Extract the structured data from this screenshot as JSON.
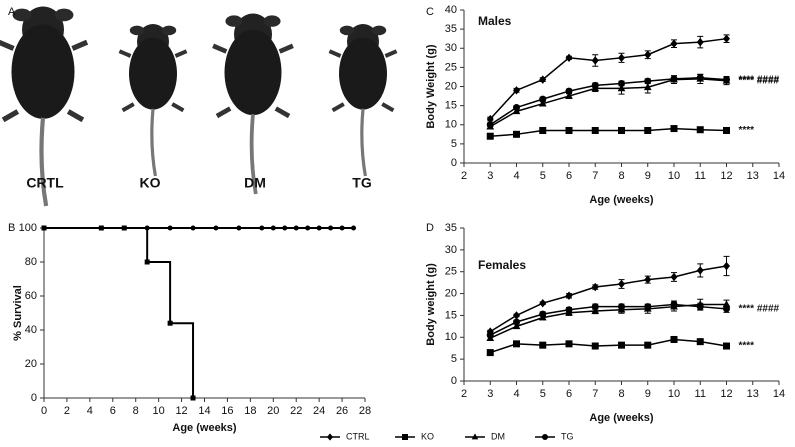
{
  "photo_panel": {
    "label": "A",
    "mice": [
      "CRTL",
      "KO",
      "DM",
      "TG"
    ]
  },
  "chart_data": [
    {
      "type": "step",
      "panel": "B",
      "y_label": "% Survival",
      "x_label": "Age (weeks)",
      "xlim": [
        0,
        28
      ],
      "xticks": [
        0,
        2,
        4,
        6,
        8,
        10,
        12,
        14,
        16,
        18,
        20,
        22,
        24,
        26,
        28
      ],
      "ylim": [
        0,
        100
      ],
      "yticks": [
        0,
        20,
        40,
        60,
        80,
        100
      ],
      "series": [
        {
          "marker": "circle",
          "color": "#000000",
          "x": [
            0,
            5,
            7,
            9,
            11,
            13,
            15,
            17,
            19,
            20,
            21,
            22,
            23,
            24,
            25,
            26,
            27
          ],
          "values": [
            100,
            100,
            100,
            100,
            100,
            100,
            100,
            100,
            100,
            100,
            100,
            100,
            100,
            100,
            100,
            100,
            100
          ]
        },
        {
          "marker": "square",
          "color": "#000000",
          "x": [
            0,
            5,
            7,
            9,
            11,
            13
          ],
          "values": [
            100,
            100,
            100,
            80,
            44,
            0
          ]
        }
      ]
    },
    {
      "type": "line",
      "panel": "C",
      "annotation": "Males",
      "y_label": "Body Weight (g)",
      "x_label": "Age (weeks)",
      "xlim": [
        2,
        14
      ],
      "xticks": [
        2,
        3,
        4,
        5,
        6,
        7,
        8,
        9,
        10,
        11,
        12,
        13,
        14
      ],
      "ylim": [
        0,
        40
      ],
      "yticks": [
        0,
        5,
        10,
        15,
        20,
        25,
        30,
        35,
        40
      ],
      "x": [
        3,
        4,
        5,
        6,
        7,
        8,
        9,
        10,
        11,
        12
      ],
      "series": [
        {
          "name": "CTRL",
          "marker": "diamond",
          "color": "#000000",
          "values": [
            11.5,
            19,
            21.8,
            27.5,
            26.8,
            27.5,
            28.3,
            31.2,
            31.6,
            32.5
          ],
          "errors": [
            0.5,
            0.5,
            0.5,
            0.4,
            1.5,
            1.2,
            1,
            1,
            1.5,
            1
          ]
        },
        {
          "name": "KO",
          "marker": "square",
          "color": "#000000",
          "values": [
            7,
            7.5,
            8.5,
            8.5,
            8.5,
            8.5,
            8.5,
            9,
            8.7,
            8.5
          ],
          "errors": [
            0.3,
            0.3,
            0.3,
            0.3,
            0.3,
            0.3,
            0.3,
            0.4,
            0.4,
            0.4
          ],
          "significance": "****"
        },
        {
          "name": "DM",
          "marker": "triangle",
          "color": "#000000",
          "values": [
            9.5,
            13.5,
            15.5,
            17.5,
            19.5,
            19.5,
            19.8,
            21.8,
            22,
            21.5
          ],
          "errors": [
            0.5,
            0.5,
            0.5,
            0.6,
            0.8,
            1.5,
            1.5,
            1,
            1.2,
            1
          ],
          "significance": "**** ####"
        },
        {
          "name": "TG",
          "marker": "circle",
          "color": "#000000",
          "values": [
            10,
            14.5,
            16.7,
            18.8,
            20.3,
            20.8,
            21.4,
            22,
            22.3,
            21.8
          ],
          "errors": [
            0.5,
            0.5,
            0.5,
            0.5,
            0.6,
            0.6,
            0.6,
            0.8,
            0.8,
            0.8
          ],
          "significance": "**** ####"
        }
      ]
    },
    {
      "type": "line",
      "panel": "D",
      "annotation": "Females",
      "y_label": "Body weight (g)",
      "x_label": "Age (weeks)",
      "xlim": [
        2,
        14
      ],
      "xticks": [
        2,
        3,
        4,
        5,
        6,
        7,
        8,
        9,
        10,
        11,
        12,
        13,
        14
      ],
      "ylim": [
        0,
        35
      ],
      "yticks": [
        0,
        5,
        10,
        15,
        20,
        25,
        30,
        35
      ],
      "x": [
        3,
        4,
        5,
        6,
        7,
        8,
        9,
        10,
        11,
        12
      ],
      "series": [
        {
          "name": "CTRL",
          "marker": "diamond",
          "color": "#000000",
          "values": [
            11.3,
            15,
            17.8,
            19.5,
            21.5,
            22.2,
            23.2,
            23.8,
            25.3,
            26.3
          ],
          "errors": [
            0.3,
            0.3,
            0.3,
            0.5,
            0.5,
            1,
            0.8,
            1,
            1.5,
            2.2
          ]
        },
        {
          "name": "KO",
          "marker": "square",
          "color": "#000000",
          "values": [
            6.5,
            8.5,
            8.2,
            8.5,
            8,
            8.2,
            8.2,
            9.5,
            9,
            8
          ],
          "errors": [
            0.3,
            0.3,
            0.3,
            0.3,
            0.3,
            0.3,
            0.3,
            0.5,
            0.5,
            0.5
          ],
          "significance": "****"
        },
        {
          "name": "DM",
          "marker": "triangle",
          "color": "#000000",
          "values": [
            9.8,
            12.5,
            14.5,
            15.6,
            16,
            16.3,
            16.5,
            17,
            17.5,
            17.5
          ],
          "errors": [
            0.5,
            0.5,
            0.5,
            0.6,
            0.6,
            0.8,
            1,
            1,
            1.2,
            1
          ]
        },
        {
          "name": "TG",
          "marker": "circle",
          "color": "#000000",
          "values": [
            10.5,
            13.5,
            15.3,
            16.3,
            17,
            17,
            17,
            17.5,
            17,
            16.5
          ],
          "errors": [
            0.4,
            0.4,
            0.5,
            0.5,
            0.6,
            0.6,
            0.6,
            0.8,
            0.8,
            0.8
          ],
          "significance": "**** ####"
        }
      ]
    }
  ]
}
